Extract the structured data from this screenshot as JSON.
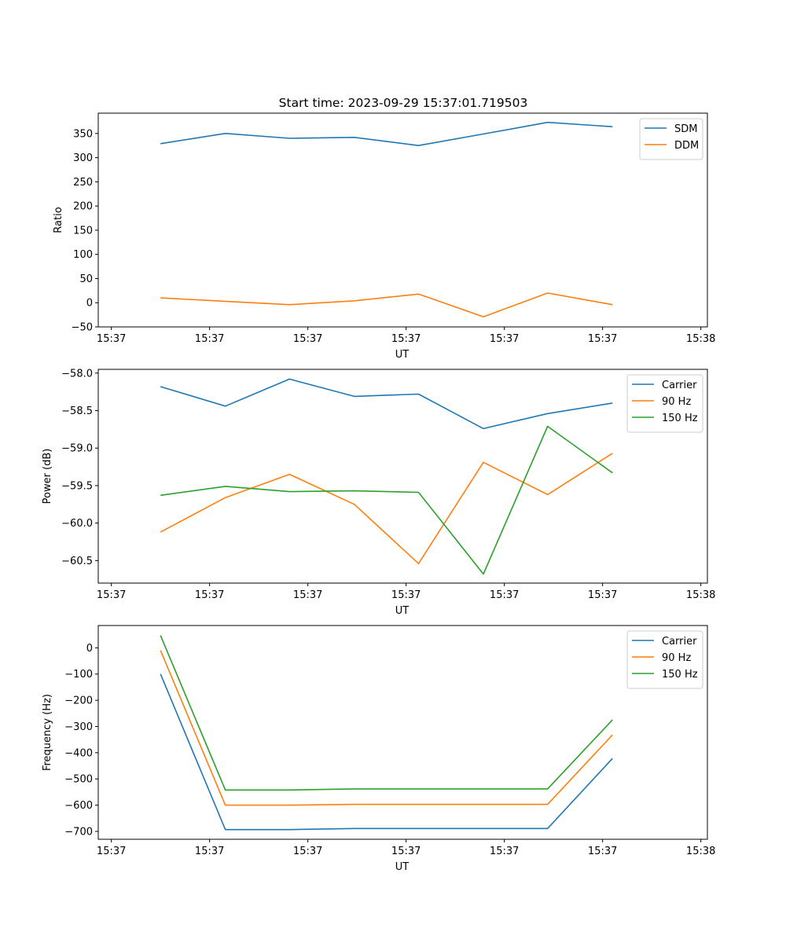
{
  "title": "Start time: 2023-09-29 15:37:01.719503",
  "colors": {
    "blue": "#1f77b4",
    "orange": "#ff7f0e",
    "green": "#2ca02c"
  },
  "chart_data": [
    {
      "type": "line",
      "ylabel": "Ratio",
      "xlabel": "UT",
      "ylim": [
        -50,
        392
      ],
      "xlim": [
        -0.2,
        9.1
      ],
      "yticks": [
        -50,
        0,
        50,
        100,
        150,
        200,
        250,
        300,
        350
      ],
      "ytick_labels": [
        "−50",
        "0",
        "50",
        "100",
        "150",
        "200",
        "250",
        "300",
        "350"
      ],
      "xticks": [
        0,
        1.5,
        3,
        4.5,
        6,
        7.5,
        9
      ],
      "xtick_labels": [
        "15:37",
        "15:37",
        "15:37",
        "15:37",
        "15:37",
        "15:37",
        "15:38"
      ],
      "legend": "top-right",
      "x": [
        0.75,
        1.74,
        2.72,
        3.71,
        4.69,
        5.68,
        6.66,
        7.65
      ],
      "series": [
        {
          "name": "SDM",
          "color": "#1f77b4",
          "values": [
            329,
            350,
            340,
            342,
            325,
            349,
            373,
            364
          ]
        },
        {
          "name": "DDM",
          "color": "#ff7f0e",
          "values": [
            10,
            3,
            -4,
            4,
            18,
            -29,
            20,
            -4
          ]
        }
      ]
    },
    {
      "type": "line",
      "ylabel": "Power (dB)",
      "xlabel": "UT",
      "ylim": [
        -60.8,
        -57.95
      ],
      "xlim": [
        -0.2,
        9.1
      ],
      "yticks": [
        -60.5,
        -60.0,
        -59.5,
        -59.0,
        -58.5,
        -58.0
      ],
      "ytick_labels": [
        "−60.5",
        "−60.0",
        "−59.5",
        "−59.0",
        "−58.5",
        "−58.0"
      ],
      "xticks": [
        0,
        1.5,
        3,
        4.5,
        6,
        7.5,
        9
      ],
      "xtick_labels": [
        "15:37",
        "15:37",
        "15:37",
        "15:37",
        "15:37",
        "15:37",
        "15:38"
      ],
      "legend": "top-right",
      "x": [
        0.75,
        1.74,
        2.72,
        3.71,
        4.69,
        5.68,
        6.66,
        7.65
      ],
      "series": [
        {
          "name": "Carrier",
          "color": "#1f77b4",
          "values": [
            -58.18,
            -58.44,
            -58.08,
            -58.31,
            -58.28,
            -58.74,
            -58.54,
            -58.4
          ]
        },
        {
          "name": "90 Hz",
          "color": "#ff7f0e",
          "values": [
            -60.12,
            -59.66,
            -59.35,
            -59.75,
            -60.54,
            -59.19,
            -59.62,
            -59.07
          ]
        },
        {
          "name": "150 Hz",
          "color": "#2ca02c",
          "values": [
            -59.63,
            -59.51,
            -59.58,
            -59.57,
            -59.59,
            -60.68,
            -58.71,
            -59.33
          ]
        }
      ]
    },
    {
      "type": "line",
      "ylabel": "Frequency (Hz)",
      "xlabel": "UT",
      "ylim": [
        -730,
        85
      ],
      "xlim": [
        -0.2,
        9.1
      ],
      "yticks": [
        -700,
        -600,
        -500,
        -400,
        -300,
        -200,
        -100,
        0
      ],
      "ytick_labels": [
        "−700",
        "−600",
        "−500",
        "−400",
        "−300",
        "−200",
        "−100",
        "0"
      ],
      "xticks": [
        0,
        1.5,
        3,
        4.5,
        6,
        7.5,
        9
      ],
      "xtick_labels": [
        "15:37",
        "15:37",
        "15:37",
        "15:37",
        "15:37",
        "15:37",
        "15:38"
      ],
      "legend": "top-right",
      "x": [
        0.75,
        1.74,
        2.72,
        3.71,
        4.69,
        5.68,
        6.66,
        7.65
      ],
      "series": [
        {
          "name": "Carrier",
          "color": "#1f77b4",
          "values": [
            -100,
            -693,
            -693,
            -689,
            -689,
            -689,
            -689,
            -422
          ]
        },
        {
          "name": "90 Hz",
          "color": "#ff7f0e",
          "values": [
            -10,
            -600,
            -600,
            -597,
            -597,
            -597,
            -597,
            -332
          ]
        },
        {
          "name": "150 Hz",
          "color": "#2ca02c",
          "values": [
            47,
            -542,
            -542,
            -538,
            -538,
            -538,
            -538,
            -275
          ]
        }
      ]
    }
  ]
}
